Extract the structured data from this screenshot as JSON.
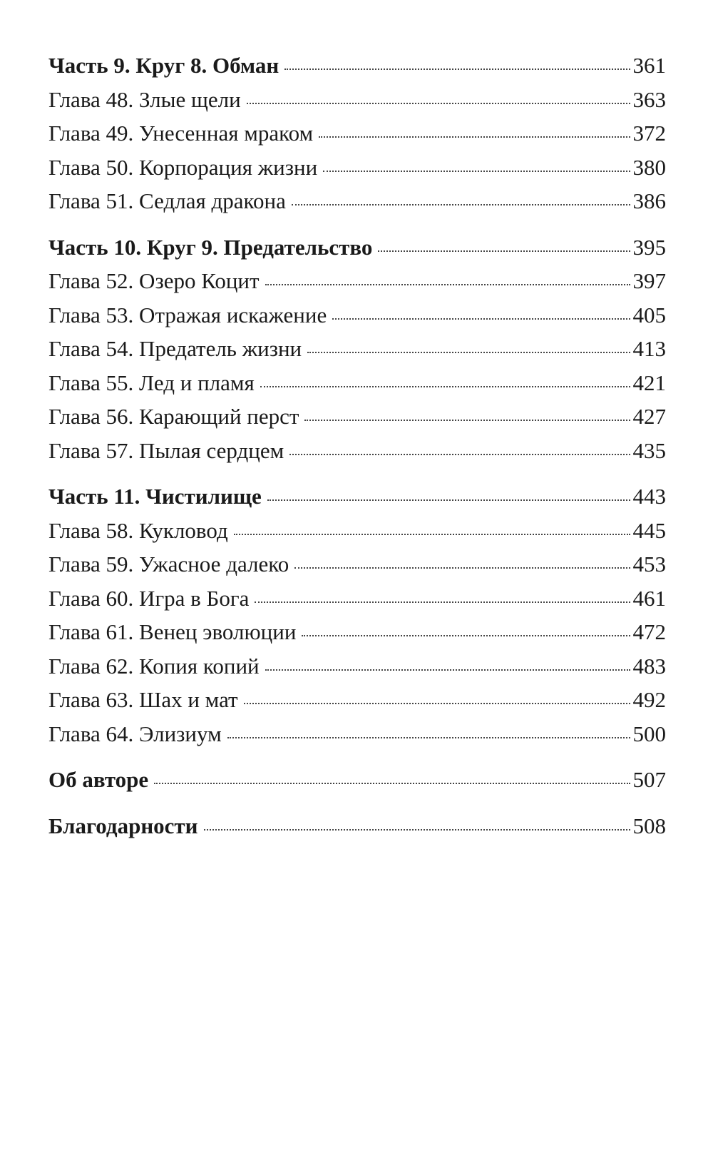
{
  "toc": [
    {
      "title": "Часть 9. Круг 8. Обман",
      "page": "361",
      "type": "part"
    },
    {
      "title": "Глава 48. Злые щели",
      "page": "363",
      "type": "chapter"
    },
    {
      "title": "Глава 49. Унесенная мраком",
      "page": "372",
      "type": "chapter"
    },
    {
      "title": "Глава 50. Корпорация жизни",
      "page": "380",
      "type": "chapter"
    },
    {
      "title": "Глава 51. Седлая дракона",
      "page": "386",
      "type": "chapter"
    },
    {
      "title": "Часть 10. Круг 9. Предательство",
      "page": "395",
      "type": "part"
    },
    {
      "title": "Глава 52. Озеро Коцит",
      "page": "397",
      "type": "chapter"
    },
    {
      "title": "Глава 53. Отражая искажение",
      "page": "405",
      "type": "chapter"
    },
    {
      "title": "Глава 54. Предатель жизни",
      "page": "413",
      "type": "chapter"
    },
    {
      "title": "Глава 55. Лед и пламя",
      "page": "421",
      "type": "chapter"
    },
    {
      "title": "Глава 56. Карающий перст",
      "page": "427",
      "type": "chapter"
    },
    {
      "title": "Глава 57. Пылая сердцем",
      "page": "435",
      "type": "chapter"
    },
    {
      "title": "Часть 11. Чистилище",
      "page": "443",
      "type": "part"
    },
    {
      "title": "Глава 58. Кукловод",
      "page": "445",
      "type": "chapter"
    },
    {
      "title": "Глава 59. Ужасное далеко",
      "page": "453",
      "type": "chapter"
    },
    {
      "title": "Глава 60. Игра в Бога",
      "page": "461",
      "type": "chapter"
    },
    {
      "title": "Глава 61. Венец эволюции",
      "page": "472",
      "type": "chapter"
    },
    {
      "title": "Глава 62. Копия копий",
      "page": "483",
      "type": "chapter"
    },
    {
      "title": "Глава 63. Шах и мат",
      "page": "492",
      "type": "chapter"
    },
    {
      "title": "Глава 64. Элизиум",
      "page": "500",
      "type": "chapter"
    },
    {
      "title": "Об авторе",
      "page": "507",
      "type": "part"
    },
    {
      "title": "Благодарности",
      "page": "508",
      "type": "part"
    }
  ]
}
